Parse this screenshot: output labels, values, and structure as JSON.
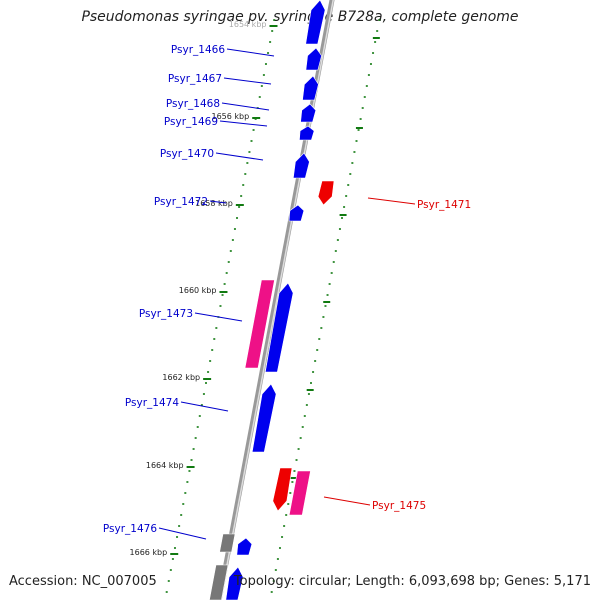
{
  "title": "Pseudomonas syringae pv. syringae B728a, complete genome",
  "footer": {
    "accession": "Accession: NC_007005",
    "summary": "Topology: circular; Length: 6,093,698 bp; Genes: 5,171"
  },
  "colors": {
    "forward_gene": "#0000ee",
    "reverse_gene": "#ee0000",
    "forward_feature": "#ee1187",
    "other_feature": "#777777",
    "backbone": "#999999",
    "tick": "#117a11",
    "forward_label": "#0000cc",
    "reverse_label": "#dd0000"
  },
  "kbp_labels": [
    "1654 kbp",
    "1656 kbp",
    "1658 kbp",
    "1660 kbp",
    "1662 kbp",
    "1664 kbp",
    "1666 kbp"
  ],
  "genes_forward": [
    {
      "label": "Psyr_1466"
    },
    {
      "label": "Psyr_1467"
    },
    {
      "label": "Psyr_1468"
    },
    {
      "label": "Psyr_1469"
    },
    {
      "label": "Psyr_1470"
    },
    {
      "label": "Psyr_1472"
    },
    {
      "label": "Psyr_1473"
    },
    {
      "label": "Psyr_1474"
    },
    {
      "label": "Psyr_1476"
    }
  ],
  "genes_reverse": [
    {
      "label": "Psyr_1471"
    },
    {
      "label": "Psyr_1475"
    }
  ]
}
